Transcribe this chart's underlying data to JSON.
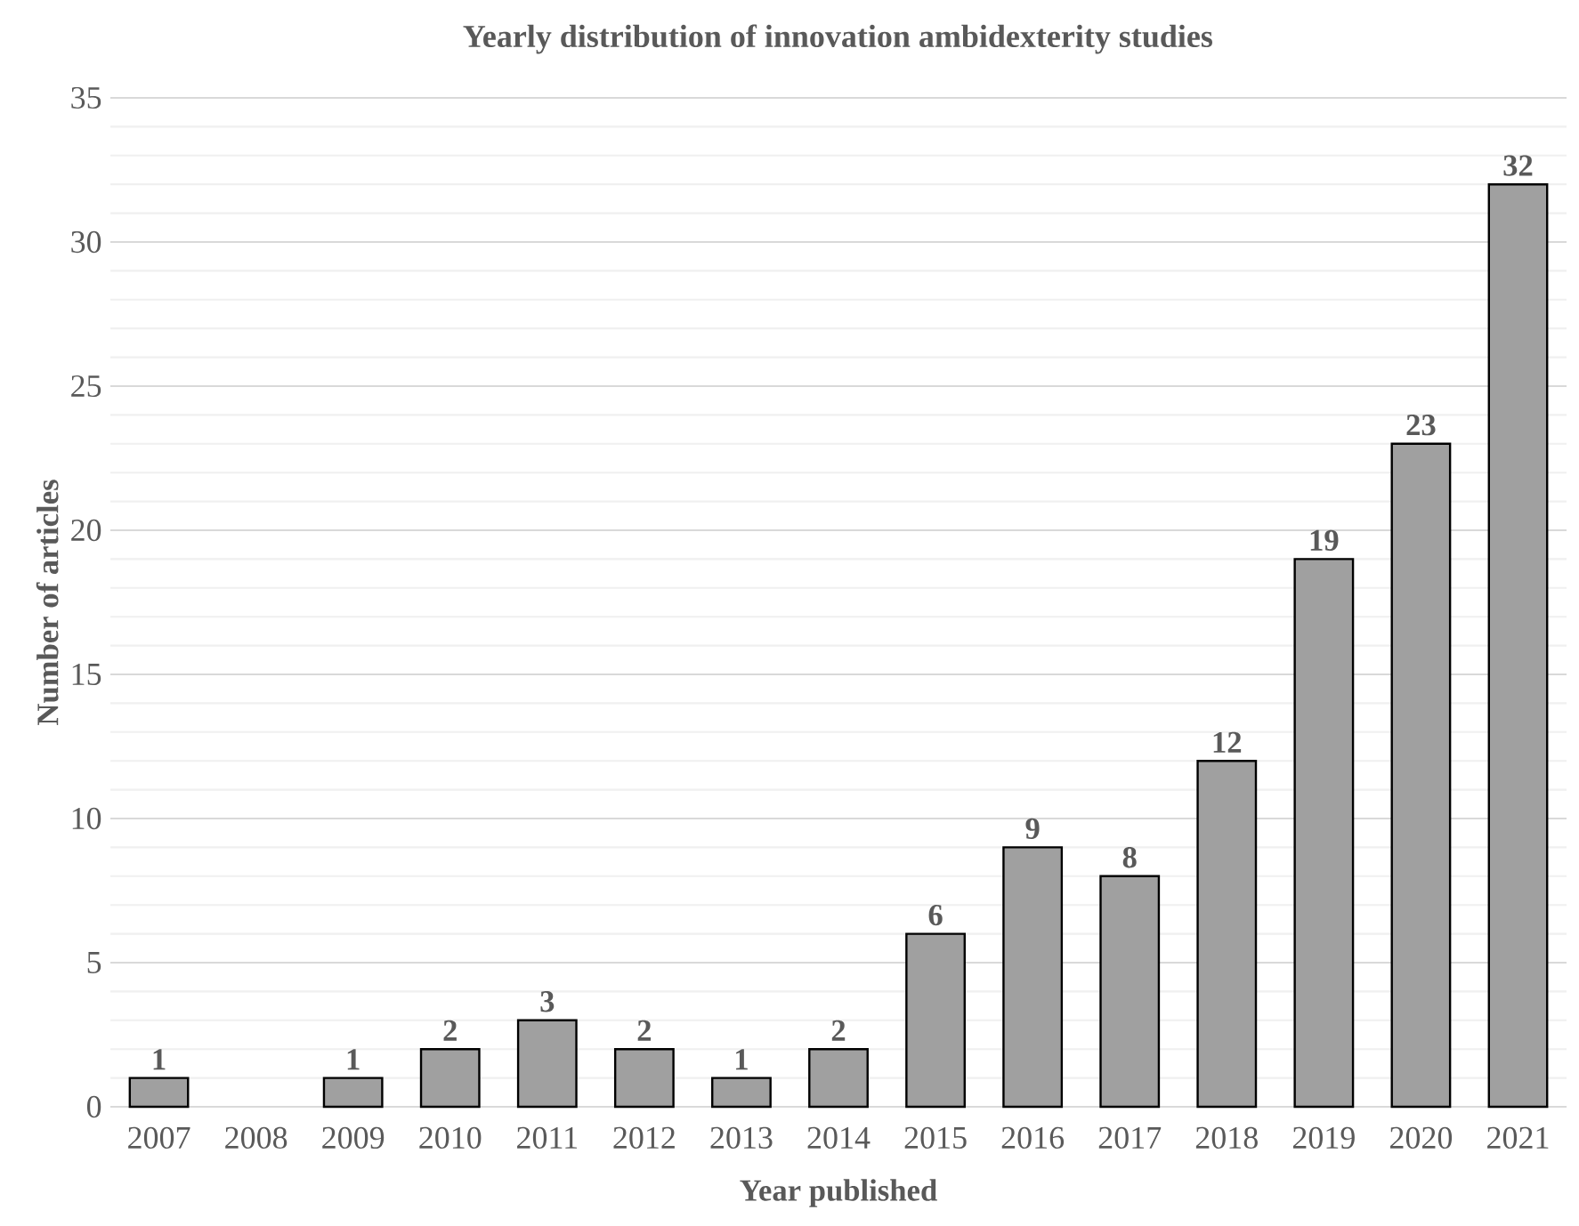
{
  "chart_data": {
    "type": "bar",
    "title": "Yearly distribution of innovation ambidexterity studies",
    "xlabel": "Year published",
    "ylabel": "Number of articles",
    "categories": [
      "2007",
      "2008",
      "2009",
      "2010",
      "2011",
      "2012",
      "2013",
      "2014",
      "2015",
      "2016",
      "2017",
      "2018",
      "2019",
      "2020",
      "2021"
    ],
    "values": [
      1,
      0,
      1,
      2,
      3,
      2,
      1,
      2,
      6,
      9,
      8,
      12,
      19,
      23,
      32
    ],
    "value_labels": [
      "1",
      null,
      "1",
      "2",
      "3",
      "2",
      "1",
      "2",
      "6",
      "9",
      "8",
      "12",
      "19",
      "23",
      "32"
    ],
    "color": "#a0a0a0",
    "ylim": [
      0,
      35
    ],
    "yticks": [
      0,
      5,
      10,
      15,
      20,
      25,
      30,
      35
    ],
    "grid": "y"
  }
}
